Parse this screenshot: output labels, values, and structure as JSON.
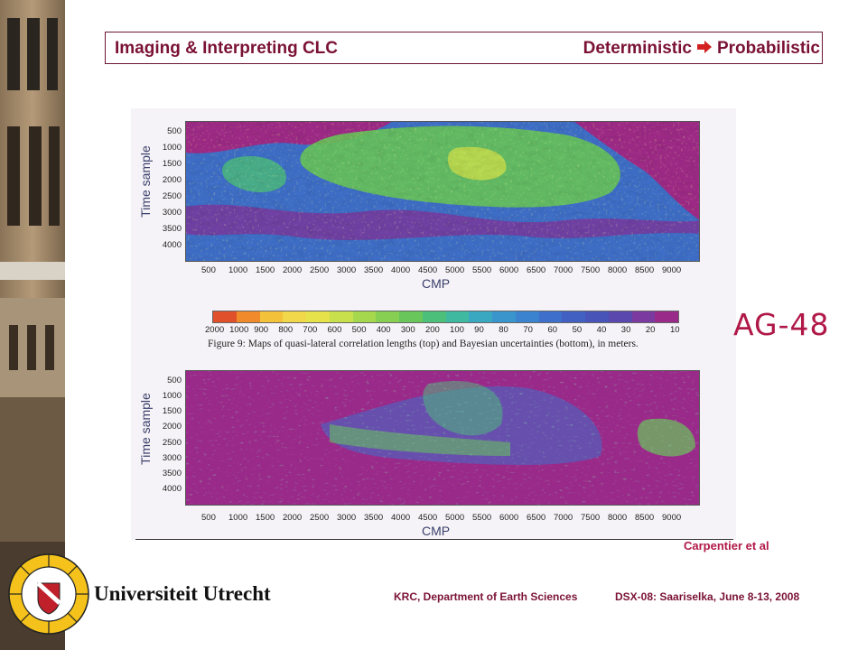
{
  "header": {
    "title_left": "Imaging & Interpreting CLC",
    "title_right_a": "Deterministic",
    "title_right_b": "Probabilistic"
  },
  "figure": {
    "caption": "Figure 9: Maps of quasi-lateral correlation lengths (top) and Bayesian uncertainties (bottom), in meters.",
    "ylabel": "Time sample",
    "xlabel": "CMP",
    "yticks": [
      "500",
      "1000",
      "1500",
      "2000",
      "2500",
      "3000",
      "3500",
      "4000"
    ],
    "xticks": [
      "500",
      "1000",
      "1500",
      "2000",
      "2500",
      "3000",
      "3500",
      "4000",
      "4500",
      "5000",
      "5500",
      "6000",
      "6500",
      "7000",
      "7500",
      "8000",
      "8500",
      "9000"
    ],
    "colorbar_labels": [
      "2000",
      "1000",
      "900",
      "800",
      "700",
      "600",
      "500",
      "400",
      "300",
      "200",
      "100",
      "90",
      "80",
      "70",
      "60",
      "50",
      "40",
      "30",
      "20",
      "10"
    ],
    "colorbar_colors": [
      "#e0502a",
      "#f08a2a",
      "#f3c23a",
      "#f1d84a",
      "#e6e24a",
      "#c8e04c",
      "#a6d84e",
      "#86cf52",
      "#68c65a",
      "#4cc07a",
      "#3fb9a0",
      "#3aa8c0",
      "#3a95cc",
      "#3b82cf",
      "#3e6fca",
      "#4160c2",
      "#4854b8",
      "#5a48ae",
      "#7a3aa0",
      "#9a2a8a"
    ]
  },
  "label_id": "AG-48",
  "credit": "Carpentier et al",
  "university": "Universiteit Utrecht",
  "footer": {
    "left": "KRC, Department of Earth Sciences",
    "right": "DSX-08: Saariselka, June 8-13, 2008"
  },
  "colors": {
    "accent": "#7a1235",
    "highlight": "#b01848"
  }
}
